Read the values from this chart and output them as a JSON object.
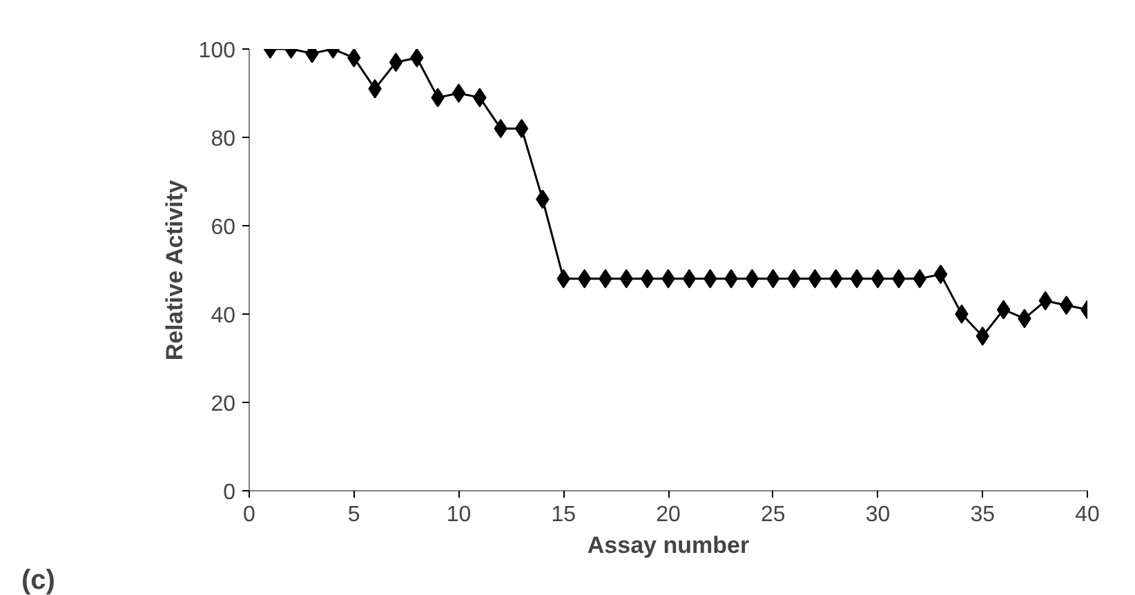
{
  "chart_data": {
    "type": "line",
    "xlabel": "Assay number",
    "ylabel": "Relative Activity",
    "annotations": [
      "(c)"
    ],
    "x": [
      1,
      2,
      3,
      4,
      5,
      6,
      7,
      8,
      9,
      10,
      11,
      12,
      13,
      14,
      15,
      16,
      17,
      18,
      19,
      20,
      21,
      22,
      23,
      24,
      25,
      26,
      27,
      28,
      29,
      30,
      31,
      32,
      33,
      34,
      35,
      36,
      37,
      38,
      39,
      40
    ],
    "series": [
      {
        "color": "#000000",
        "values": [
          100,
          100,
          99,
          100,
          98,
          91,
          97,
          98,
          89,
          90,
          89,
          82,
          82,
          66,
          48,
          48,
          48,
          48,
          48,
          48,
          48,
          48,
          48,
          48,
          48,
          48,
          48,
          48,
          48,
          48,
          48,
          48,
          49,
          40,
          35,
          41,
          39,
          43,
          42,
          41
        ]
      }
    ],
    "xlim": [
      0,
      40
    ],
    "xticks": [
      0,
      5,
      10,
      15,
      20,
      25,
      30,
      35,
      40
    ],
    "ylim": [
      0,
      100
    ],
    "yticks": [
      0,
      20,
      40,
      60,
      80,
      100
    ],
    "grid": false,
    "marker": "diamond",
    "line_style": "solid"
  }
}
